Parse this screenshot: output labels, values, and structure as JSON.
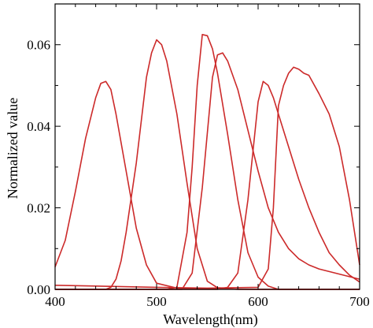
{
  "chart_data": {
    "type": "line",
    "title": "",
    "xlabel": "Wavelength(nm)",
    "ylabel": "Normalized value",
    "xlim": [
      400,
      700
    ],
    "ylim": [
      0,
      0.07
    ],
    "xticks": [
      400,
      500,
      600,
      700
    ],
    "xtick_labels": [
      "400",
      "500",
      "600",
      "700"
    ],
    "yticks": [
      0,
      0.02,
      0.04,
      0.06
    ],
    "ytick_labels": [
      "0.00",
      "0.02",
      "0.04",
      "0.06"
    ],
    "grid": false,
    "legend": "none",
    "line_color": "#cc2a2a",
    "series": [
      {
        "x": [
          400,
          410,
          420,
          430,
          440,
          445,
          450,
          455,
          460,
          470,
          480,
          490,
          500,
          520,
          550,
          600,
          650,
          700
        ],
        "values": [
          0.0055,
          0.012,
          0.024,
          0.037,
          0.047,
          0.0505,
          0.051,
          0.049,
          0.043,
          0.029,
          0.015,
          0.006,
          0.0015,
          0.0003,
          0.0001,
          0.0,
          0.0,
          0.0
        ]
      },
      {
        "x": [
          400,
          430,
          450,
          455,
          460,
          465,
          470,
          480,
          490,
          495,
          500,
          505,
          510,
          520,
          530,
          540,
          550,
          560,
          580,
          700
        ],
        "values": [
          0.0,
          0.0,
          0.0,
          0.0005,
          0.0025,
          0.007,
          0.014,
          0.031,
          0.052,
          0.058,
          0.0612,
          0.06,
          0.056,
          0.043,
          0.026,
          0.01,
          0.002,
          0.0004,
          0.0,
          0.0
        ]
      },
      {
        "x": [
          400,
          500,
          510,
          520,
          530,
          535,
          540,
          545,
          550,
          555,
          560,
          570,
          580,
          590,
          600,
          610,
          620,
          700
        ],
        "values": [
          0.0,
          0.0,
          0.0,
          0.0005,
          0.014,
          0.03,
          0.05,
          0.0625,
          0.0622,
          0.059,
          0.053,
          0.038,
          0.022,
          0.009,
          0.003,
          0.0008,
          0.0,
          0.0
        ]
      },
      {
        "x": [
          400,
          500,
          525,
          535,
          545,
          555,
          560,
          565,
          570,
          580,
          590,
          600,
          610,
          620,
          630,
          640,
          650,
          660,
          700
        ],
        "values": [
          0.0,
          0.0,
          0.0,
          0.004,
          0.025,
          0.052,
          0.0575,
          0.058,
          0.056,
          0.049,
          0.039,
          0.029,
          0.02,
          0.014,
          0.01,
          0.0075,
          0.006,
          0.005,
          0.0025
        ]
      },
      {
        "x": [
          400,
          560,
          570,
          580,
          590,
          600,
          605,
          610,
          615,
          620,
          630,
          640,
          650,
          660,
          670,
          680,
          690,
          700
        ],
        "values": [
          0.0,
          0.0,
          0.0005,
          0.004,
          0.022,
          0.046,
          0.051,
          0.05,
          0.047,
          0.043,
          0.035,
          0.027,
          0.02,
          0.014,
          0.009,
          0.006,
          0.0035,
          0.0018
        ]
      },
      {
        "x": [
          400,
          500,
          550,
          600,
          610,
          615,
          620,
          625,
          630,
          635,
          640,
          645,
          650,
          660,
          670,
          680,
          690,
          700
        ],
        "values": [
          0.001,
          0.0005,
          0.0003,
          0.0005,
          0.005,
          0.02,
          0.045,
          0.05,
          0.053,
          0.0545,
          0.054,
          0.053,
          0.0525,
          0.048,
          0.043,
          0.035,
          0.022,
          0.006
        ]
      }
    ]
  }
}
